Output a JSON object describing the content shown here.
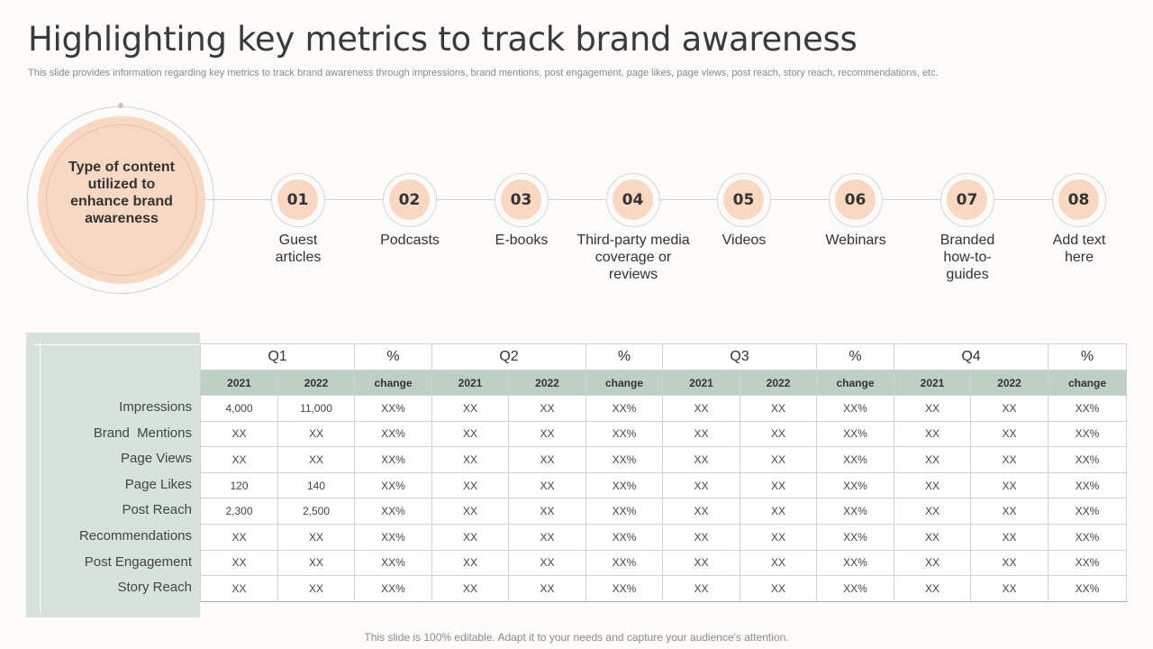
{
  "title": "Highlighting key metrics to track brand awareness",
  "subtitle": "This slide provides information regarding key metrics to track brand awareness through impressions, brand mentions, post engagement, page likes, page views, post reach, story reach, recommendations, etc.",
  "hub": {
    "text": "Type of content utilized to enhance brand awareness"
  },
  "colors": {
    "accent": "#f9d8c3",
    "table_header": "#bdd0c3",
    "side_panel": "#d6e2da"
  },
  "steps": [
    {
      "num": "01",
      "label": "Guest articles"
    },
    {
      "num": "02",
      "label": "Podcasts"
    },
    {
      "num": "03",
      "label": "E-books"
    },
    {
      "num": "04",
      "label": "Third-party media coverage or reviews"
    },
    {
      "num": "05",
      "label": "Videos"
    },
    {
      "num": "06",
      "label": "Webinars"
    },
    {
      "num": "07",
      "label": "Branded how-to-guides"
    },
    {
      "num": "08",
      "label": "Add text here"
    }
  ],
  "table": {
    "quarters": [
      "Q1",
      "%",
      "Q2",
      "%",
      "Q3",
      "%",
      "Q4",
      "%"
    ],
    "subheaders": [
      "2021",
      "2022",
      "change",
      "2021",
      "2022",
      "change",
      "2021",
      "2022",
      "change",
      "2021",
      "2022",
      "change"
    ],
    "row_labels": [
      "Impressions",
      "Brand  Mentions",
      "Page Views",
      "Page Likes",
      "Post Reach",
      "Recommendations",
      "Post Engagement",
      "Story Reach"
    ],
    "rows": [
      [
        "4,000",
        "11,000",
        "XX%",
        "XX",
        "XX",
        "XX%",
        "XX",
        "XX",
        "XX%",
        "XX",
        "XX",
        "XX%"
      ],
      [
        "XX",
        "XX",
        "XX%",
        "XX",
        "XX",
        "XX%",
        "XX",
        "XX",
        "XX%",
        "XX",
        "XX",
        "XX%"
      ],
      [
        "XX",
        "XX",
        "XX%",
        "XX",
        "XX",
        "XX%",
        "XX",
        "XX",
        "XX%",
        "XX",
        "XX",
        "XX%"
      ],
      [
        "120",
        "140",
        "XX%",
        "XX",
        "XX",
        "XX%",
        "XX",
        "XX",
        "XX%",
        "XX",
        "XX",
        "XX%"
      ],
      [
        "2,300",
        "2,500",
        "XX%",
        "XX",
        "XX",
        "XX%",
        "XX",
        "XX",
        "XX%",
        "XX",
        "XX",
        "XX%"
      ],
      [
        "XX",
        "XX",
        "XX%",
        "XX",
        "XX",
        "XX%",
        "XX",
        "XX",
        "XX%",
        "XX",
        "XX",
        "XX%"
      ],
      [
        "XX",
        "XX",
        "XX%",
        "XX",
        "XX",
        "XX%",
        "XX",
        "XX",
        "XX%",
        "XX",
        "XX",
        "XX%"
      ],
      [
        "XX",
        "XX",
        "XX%",
        "XX",
        "XX",
        "XX%",
        "XX",
        "XX",
        "XX%",
        "XX",
        "XX",
        "XX%"
      ]
    ]
  },
  "footer": "This slide is 100% editable. Adapt it to your needs and capture your audience's attention."
}
